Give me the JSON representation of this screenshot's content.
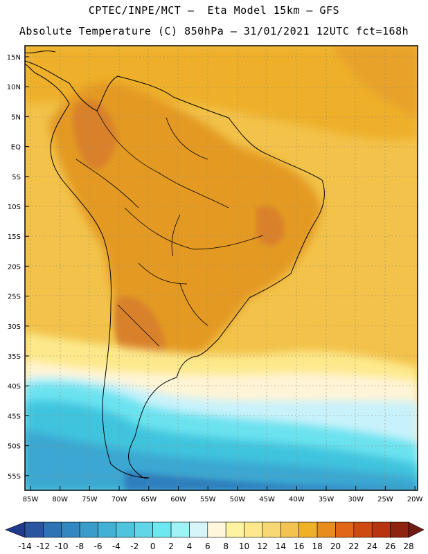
{
  "header": {
    "line1": "CPTEC/INPE/MCT –  Eta Model 15km – GFS",
    "line2": "Absolute Temperature (C) 850hPa – 31/01/2021 12UTC fct=168h"
  },
  "map": {
    "lat_labels": [
      "15N",
      "10N",
      "5N",
      "EQ",
      "5S",
      "10S",
      "15S",
      "20S",
      "25S",
      "30S",
      "35S",
      "40S",
      "45S",
      "50S",
      "55S"
    ],
    "lon_labels": [
      "85W",
      "80W",
      "75W",
      "70W",
      "65W",
      "60W",
      "55W",
      "50W",
      "45W",
      "40W",
      "35W",
      "30W",
      "25W",
      "20W"
    ],
    "colors": {
      "ocean_warm": "#f2c24a",
      "ocean_hot": "#eeb02c",
      "land_hot": "#e49a22",
      "land_hotter": "#d9812a",
      "cool_yellow": "#fde98c",
      "pale": "#fff4d6",
      "ice": "#c8f2fb",
      "cyan": "#6ce2ef",
      "teal": "#3fc4de",
      "blue": "#3aa7d2",
      "deep_blue": "#2f7fbd"
    }
  },
  "colorbar": {
    "labels": [
      "-14",
      "-12",
      "-10",
      "-8",
      "-6",
      "-4",
      "-2",
      "0",
      "2",
      "4",
      "6",
      "8",
      "10",
      "12",
      "14",
      "16",
      "18",
      "20",
      "22",
      "24",
      "26",
      "28"
    ],
    "colors": [
      "#1f3a8a",
      "#2c55a0",
      "#2f73b4",
      "#3387c0",
      "#3a9cc8",
      "#43b1d4",
      "#50c4dc",
      "#60d6e6",
      "#6ee8f0",
      "#9ff2f6",
      "#d5f5fb",
      "#fff6dc",
      "#fdf3a0",
      "#fde98c",
      "#f8d874",
      "#f3c352",
      "#efb226",
      "#e88d1c",
      "#e06718",
      "#cf4a12",
      "#b73410",
      "#8e2410",
      "#6f1a12"
    ]
  }
}
